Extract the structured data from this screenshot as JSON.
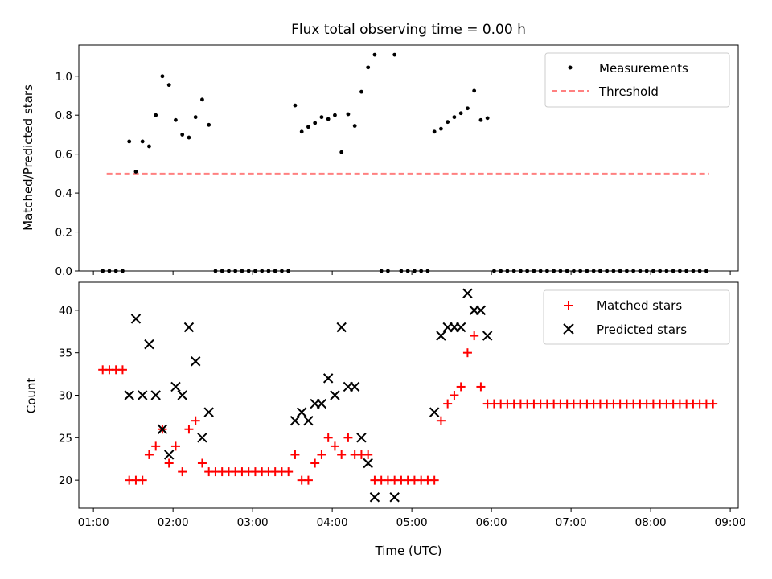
{
  "chart_data": [
    {
      "type": "scatter",
      "title": "Flux total observing time = 0.00 h",
      "xlabel": "",
      "ylabel": "Matched/Predicted stars",
      "ylim": [
        0,
        1.16
      ],
      "yticks": [
        0.0,
        0.2,
        0.4,
        0.6,
        0.8,
        1.0
      ],
      "ytick_labels": [
        "0.0",
        "0.2",
        "0.4",
        "0.6",
        "0.8",
        "1.0"
      ],
      "legend_position": "top-right",
      "threshold": {
        "name": "Threshold",
        "value": 0.5,
        "x_start": "01:10",
        "x_end": "08:44",
        "color": "#ff8080"
      },
      "series": [
        {
          "name": "Measurements",
          "color": "#000000",
          "marker": "dot",
          "points": [
            [
              "01:07",
              0
            ],
            [
              "01:12",
              0
            ],
            [
              "01:17",
              0
            ],
            [
              "01:22",
              0
            ],
            [
              "01:27",
              0.665
            ],
            [
              "01:32",
              0.51
            ],
            [
              "01:37",
              0.665
            ],
            [
              "01:42",
              0.64
            ],
            [
              "01:47",
              0.8
            ],
            [
              "01:52",
              1.0
            ],
            [
              "01:57",
              0.955
            ],
            [
              "02:02",
              0.775
            ],
            [
              "02:07",
              0.7
            ],
            [
              "02:12",
              0.685
            ],
            [
              "02:17",
              0.79
            ],
            [
              "02:22",
              0.88
            ],
            [
              "02:27",
              0.75
            ],
            [
              "02:32",
              0
            ],
            [
              "02:37",
              0
            ],
            [
              "02:42",
              0
            ],
            [
              "02:47",
              0
            ],
            [
              "02:52",
              0
            ],
            [
              "02:57",
              0
            ],
            [
              "03:02",
              0
            ],
            [
              "03:07",
              0
            ],
            [
              "03:12",
              0
            ],
            [
              "03:17",
              0
            ],
            [
              "03:22",
              0
            ],
            [
              "03:27",
              0
            ],
            [
              "03:32",
              0.85
            ],
            [
              "03:37",
              0.715
            ],
            [
              "03:42",
              0.74
            ],
            [
              "03:47",
              0.76
            ],
            [
              "03:52",
              0.79
            ],
            [
              "03:57",
              0.78
            ],
            [
              "04:02",
              0.8
            ],
            [
              "04:07",
              0.61
            ],
            [
              "04:12",
              0.805
            ],
            [
              "04:17",
              0.745
            ],
            [
              "04:22",
              0.92
            ],
            [
              "04:27",
              1.045
            ],
            [
              "04:32",
              1.11
            ],
            [
              "04:37",
              0
            ],
            [
              "04:42",
              0
            ],
            [
              "04:47",
              1.11
            ],
            [
              "04:52",
              0
            ],
            [
              "04:57",
              0
            ],
            [
              "05:02",
              0
            ],
            [
              "05:07",
              0
            ],
            [
              "05:12",
              0
            ],
            [
              "05:17",
              0.715
            ],
            [
              "05:22",
              0.73
            ],
            [
              "05:27",
              0.765
            ],
            [
              "05:32",
              0.79
            ],
            [
              "05:37",
              0.81
            ],
            [
              "05:42",
              0.835
            ],
            [
              "05:47",
              0.925
            ],
            [
              "05:52",
              0.775
            ],
            [
              "05:57",
              0.785
            ],
            [
              "06:02",
              0
            ],
            [
              "06:07",
              0
            ],
            [
              "06:12",
              0
            ],
            [
              "06:17",
              0
            ],
            [
              "06:22",
              0
            ],
            [
              "06:27",
              0
            ],
            [
              "06:32",
              0
            ],
            [
              "06:37",
              0
            ],
            [
              "06:42",
              0
            ],
            [
              "06:47",
              0
            ],
            [
              "06:52",
              0
            ],
            [
              "06:57",
              0
            ],
            [
              "07:02",
              0
            ],
            [
              "07:07",
              0
            ],
            [
              "07:12",
              0
            ],
            [
              "07:17",
              0
            ],
            [
              "07:22",
              0
            ],
            [
              "07:27",
              0
            ],
            [
              "07:32",
              0
            ],
            [
              "07:37",
              0
            ],
            [
              "07:42",
              0
            ],
            [
              "07:47",
              0
            ],
            [
              "07:52",
              0
            ],
            [
              "07:57",
              0
            ],
            [
              "08:02",
              0
            ],
            [
              "08:07",
              0
            ],
            [
              "08:12",
              0
            ],
            [
              "08:17",
              0
            ],
            [
              "08:22",
              0
            ],
            [
              "08:27",
              0
            ],
            [
              "08:32",
              0
            ],
            [
              "08:37",
              0
            ],
            [
              "08:42",
              0
            ]
          ]
        }
      ]
    },
    {
      "type": "scatter",
      "title": "",
      "xlabel": "Time (UTC)",
      "ylabel": "Count",
      "ylim": [
        16.7,
        43.3
      ],
      "yticks": [
        20,
        25,
        30,
        35,
        40
      ],
      "ytick_labels": [
        "20",
        "25",
        "30",
        "35",
        "40"
      ],
      "xlim": [
        "00:49",
        "09:06"
      ],
      "xticks": [
        "01:00",
        "02:00",
        "03:00",
        "04:00",
        "05:00",
        "06:00",
        "07:00",
        "08:00",
        "09:00"
      ],
      "legend_position": "top-right",
      "series": [
        {
          "name": "Matched stars",
          "color": "#ff0000",
          "marker": "plus",
          "points": [
            [
              "01:07",
              33
            ],
            [
              "01:12",
              33
            ],
            [
              "01:17",
              33
            ],
            [
              "01:22",
              33
            ],
            [
              "01:27",
              20
            ],
            [
              "01:32",
              20
            ],
            [
              "01:37",
              20
            ],
            [
              "01:42",
              23
            ],
            [
              "01:47",
              24
            ],
            [
              "01:52",
              26
            ],
            [
              "01:57",
              22
            ],
            [
              "02:02",
              24
            ],
            [
              "02:07",
              21
            ],
            [
              "02:12",
              26
            ],
            [
              "02:17",
              27
            ],
            [
              "02:22",
              22
            ],
            [
              "02:27",
              21
            ],
            [
              "02:32",
              21
            ],
            [
              "02:37",
              21
            ],
            [
              "02:42",
              21
            ],
            [
              "02:47",
              21
            ],
            [
              "02:52",
              21
            ],
            [
              "02:57",
              21
            ],
            [
              "03:02",
              21
            ],
            [
              "03:07",
              21
            ],
            [
              "03:12",
              21
            ],
            [
              "03:17",
              21
            ],
            [
              "03:22",
              21
            ],
            [
              "03:27",
              21
            ],
            [
              "03:32",
              23
            ],
            [
              "03:37",
              20
            ],
            [
              "03:42",
              20
            ],
            [
              "03:47",
              22
            ],
            [
              "03:52",
              23
            ],
            [
              "03:57",
              25
            ],
            [
              "04:02",
              24
            ],
            [
              "04:07",
              23
            ],
            [
              "04:12",
              25
            ],
            [
              "04:17",
              23
            ],
            [
              "04:22",
              23
            ],
            [
              "04:27",
              23
            ],
            [
              "04:32",
              20
            ],
            [
              "04:37",
              20
            ],
            [
              "04:42",
              20
            ],
            [
              "04:47",
              20
            ],
            [
              "04:52",
              20
            ],
            [
              "04:57",
              20
            ],
            [
              "05:02",
              20
            ],
            [
              "05:07",
              20
            ],
            [
              "05:12",
              20
            ],
            [
              "05:17",
              20
            ],
            [
              "05:22",
              27
            ],
            [
              "05:27",
              29
            ],
            [
              "05:32",
              30
            ],
            [
              "05:37",
              31
            ],
            [
              "05:42",
              35
            ],
            [
              "05:47",
              37
            ],
            [
              "05:52",
              31
            ],
            [
              "05:57",
              29
            ],
            [
              "06:02",
              29
            ],
            [
              "06:07",
              29
            ],
            [
              "06:12",
              29
            ],
            [
              "06:17",
              29
            ],
            [
              "06:22",
              29
            ],
            [
              "06:27",
              29
            ],
            [
              "06:32",
              29
            ],
            [
              "06:37",
              29
            ],
            [
              "06:42",
              29
            ],
            [
              "06:47",
              29
            ],
            [
              "06:52",
              29
            ],
            [
              "06:57",
              29
            ],
            [
              "07:02",
              29
            ],
            [
              "07:07",
              29
            ],
            [
              "07:12",
              29
            ],
            [
              "07:17",
              29
            ],
            [
              "07:22",
              29
            ],
            [
              "07:27",
              29
            ],
            [
              "07:32",
              29
            ],
            [
              "07:37",
              29
            ],
            [
              "07:42",
              29
            ],
            [
              "07:47",
              29
            ],
            [
              "07:52",
              29
            ],
            [
              "07:57",
              29
            ],
            [
              "08:02",
              29
            ],
            [
              "08:07",
              29
            ],
            [
              "08:12",
              29
            ],
            [
              "08:17",
              29
            ],
            [
              "08:22",
              29
            ],
            [
              "08:27",
              29
            ],
            [
              "08:32",
              29
            ],
            [
              "08:37",
              29
            ],
            [
              "08:42",
              29
            ],
            [
              "08:47",
              29
            ]
          ]
        },
        {
          "name": "Predicted stars",
          "color": "#000000",
          "marker": "x",
          "points": [
            [
              "01:27",
              30
            ],
            [
              "01:32",
              39
            ],
            [
              "01:37",
              30
            ],
            [
              "01:42",
              36
            ],
            [
              "01:47",
              30
            ],
            [
              "01:52",
              26
            ],
            [
              "01:57",
              23
            ],
            [
              "02:02",
              31
            ],
            [
              "02:07",
              30
            ],
            [
              "02:12",
              38
            ],
            [
              "02:17",
              34
            ],
            [
              "02:22",
              25
            ],
            [
              "02:27",
              28
            ],
            [
              "03:32",
              27
            ],
            [
              "03:37",
              28
            ],
            [
              "03:42",
              27
            ],
            [
              "03:47",
              29
            ],
            [
              "03:52",
              29
            ],
            [
              "03:57",
              32
            ],
            [
              "04:02",
              30
            ],
            [
              "04:07",
              38
            ],
            [
              "04:12",
              31
            ],
            [
              "04:17",
              31
            ],
            [
              "04:22",
              25
            ],
            [
              "04:27",
              22
            ],
            [
              "04:32",
              18
            ],
            [
              "04:47",
              18
            ],
            [
              "05:17",
              28
            ],
            [
              "05:22",
              37
            ],
            [
              "05:27",
              38
            ],
            [
              "05:32",
              38
            ],
            [
              "05:37",
              38
            ],
            [
              "05:42",
              42
            ],
            [
              "05:47",
              40
            ],
            [
              "05:52",
              40
            ],
            [
              "05:57",
              37
            ]
          ]
        }
      ]
    }
  ]
}
